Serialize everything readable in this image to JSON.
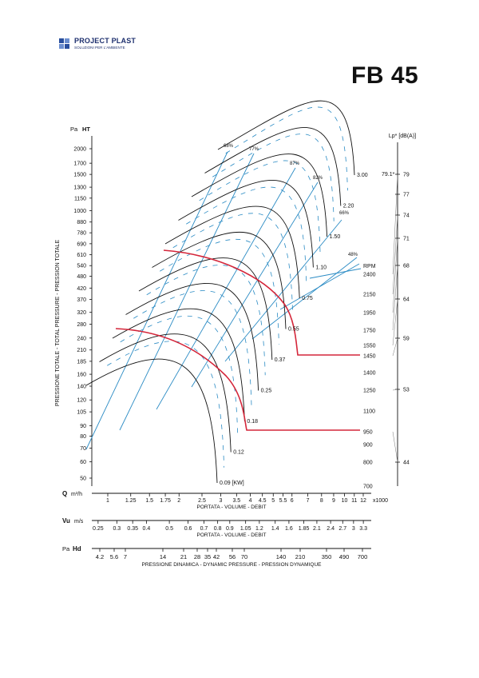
{
  "brand": {
    "name": "PROJECT PLAST",
    "tagline": "SOLUZIONI PER L'AMBIENTE",
    "color": "#1d2f6e"
  },
  "model": "FB 45",
  "chart_data": {
    "type": "line",
    "title": "FB 45",
    "colors": {
      "speed_curves": "#111111",
      "efficiency_lines": "#2a8bc4",
      "operating_lines": "#d4263a"
    },
    "y_axis": {
      "label": "PRESSIONE TOTALE - TOTAL PRESSURE - PRESSION TOTALE",
      "unit_prefix": "Pa",
      "unit_symbol": "HT",
      "scale": "log",
      "ticks": [
        2000,
        1700,
        1500,
        1300,
        1150,
        1000,
        880,
        780,
        690,
        610,
        540,
        480,
        420,
        370,
        320,
        280,
        240,
        210,
        185,
        160,
        140,
        120,
        105,
        90,
        80,
        70,
        60,
        50
      ]
    },
    "q_axis": {
      "symbol": "Q",
      "unit": "m³/h",
      "multiplier": "x1000",
      "label": "PORTATA - VOLUME - DEBIT",
      "scale": "log",
      "ticks": [
        "1",
        "1.25",
        "1.5",
        "1.75",
        "2",
        "2.5",
        "3",
        "3.5",
        "4",
        "4.5",
        "5",
        "5.5",
        "6",
        "7",
        "8",
        "9",
        "10",
        "11",
        "12"
      ]
    },
    "v_axis": {
      "symbol": "Vu",
      "unit": "m/s",
      "label": "PORTATA - VOLUME - DEBIT",
      "ticks": [
        "0.25",
        "0.3",
        "0.35",
        "0.4",
        "0.5",
        "0.6",
        "0.7",
        "0.8",
        "0.9",
        "1.05",
        "1.2",
        "1.4",
        "1.6",
        "1.85",
        "2.1",
        "2.4",
        "2.7",
        "3",
        "3.3"
      ]
    },
    "hd_axis": {
      "symbol": "Hd",
      "unit_prefix": "Pa",
      "label": "PRESSIONE DINAMICA - DYNAMIC PRESSURE - PRESSION DYNAMIQUE",
      "ticks": [
        "4.2",
        "5.6",
        "7",
        "14",
        "21",
        "28",
        "35",
        "42",
        "56",
        "70",
        "140",
        "210",
        "350",
        "490",
        "700"
      ]
    },
    "rpm_axis": {
      "label": "RPM",
      "ticks": [
        2400,
        2150,
        1950,
        1750,
        1550,
        1450,
        1400,
        1250,
        1100,
        950,
        900,
        800,
        700
      ]
    },
    "noise_axis": {
      "label": "Lp* [dB(A)]",
      "ticks": [
        79,
        77,
        74,
        71,
        68,
        64,
        59,
        53,
        44
      ],
      "marker_label": "79.1*",
      "points": [
        {
          "rpm": 2400,
          "db": 79
        },
        {
          "rpm": 2150,
          "db": 74
        },
        {
          "rpm": 1950,
          "db": 71
        },
        {
          "rpm": 1750,
          "db": 68
        },
        {
          "rpm": 1550,
          "db": 64
        },
        {
          "rpm": 1450,
          "db": 59
        },
        {
          "rpm": 1250,
          "db": 53
        },
        {
          "rpm": 950,
          "db": 44
        }
      ]
    },
    "power_labels": [
      "0.09 [KW]",
      "0.12",
      "0.18",
      "0.25",
      "0.37",
      "0.55",
      "0.75",
      "1.10",
      "1.50",
      "2.20",
      "3.00"
    ],
    "efficiency_labels": [
      "68%",
      "77%",
      "87%",
      "82%",
      "66%",
      "48%"
    ],
    "operating_points": [
      {
        "rpm": 1450,
        "power": "0.75"
      },
      {
        "rpm": 950,
        "power": "0.18"
      }
    ],
    "grid": false,
    "legend": "none"
  }
}
